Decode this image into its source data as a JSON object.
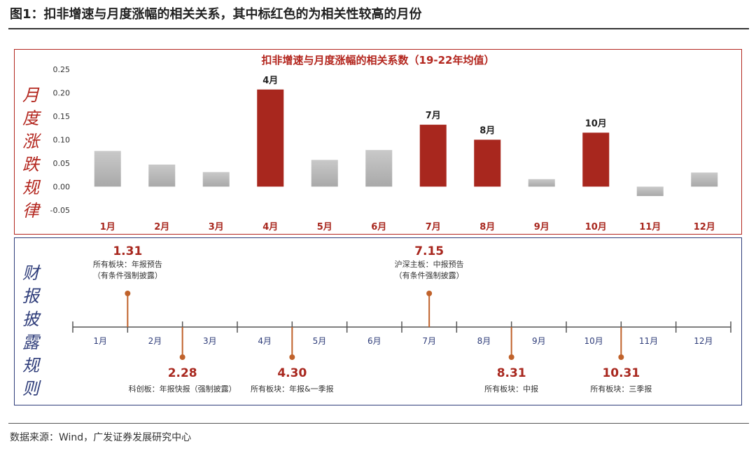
{
  "figure_title": "图1：扣非增速与月度涨幅的相关关系，其中标红色的为相关性较高的月份",
  "source": "数据来源：Wind，广发证券发展研究中心",
  "top_panel": {
    "side_label": [
      "月",
      "度",
      "涨",
      "跌",
      "规",
      "律"
    ],
    "colors": {
      "highlight": "#a8271e",
      "normal": "#bfbfbf",
      "frame": "#b3261e"
    }
  },
  "bottom_panel": {
    "side_label": [
      "财",
      "报",
      "披",
      "露",
      "规",
      "则"
    ],
    "months": [
      "1月",
      "2月",
      "3月",
      "4月",
      "5月",
      "6月",
      "7月",
      "8月",
      "9月",
      "10月",
      "11月",
      "12月"
    ],
    "events": [
      {
        "date": "1.31",
        "desc": [
          "所有板块：年报预告",
          "（有条件强制披露）"
        ],
        "month_pos": 1.0,
        "side": "up"
      },
      {
        "date": "2.28",
        "desc": [
          "科创板：年报快报（强制披露）"
        ],
        "month_pos": 2.0,
        "side": "down"
      },
      {
        "date": "4.30",
        "desc": [
          "所有板块：年报&一季报"
        ],
        "month_pos": 4.0,
        "side": "down"
      },
      {
        "date": "7.15",
        "desc": [
          "沪深主板：中报预告",
          "（有条件强制披露）"
        ],
        "month_pos": 6.5,
        "side": "up"
      },
      {
        "date": "8.31",
        "desc": [
          "所有板块：中报"
        ],
        "month_pos": 8.0,
        "side": "down"
      },
      {
        "date": "10.31",
        "desc": [
          "所有板块：三季报"
        ],
        "month_pos": 10.0,
        "side": "down"
      }
    ],
    "colors": {
      "date": "#a8271e",
      "stem": "#c0622b",
      "axis": "#555555",
      "frame": "#2f3d7a"
    }
  },
  "chart_data": {
    "type": "bar",
    "title": "扣非增速与月度涨幅的相关系数（19-22年均值）",
    "categories": [
      "1月",
      "2月",
      "3月",
      "4月",
      "5月",
      "6月",
      "7月",
      "8月",
      "9月",
      "10月",
      "11月",
      "12月"
    ],
    "values": [
      0.076,
      0.047,
      0.031,
      0.207,
      0.057,
      0.078,
      0.132,
      0.1,
      0.016,
      0.115,
      -0.02,
      0.03
    ],
    "highlighted": [
      false,
      false,
      false,
      true,
      false,
      false,
      true,
      true,
      false,
      true,
      false,
      false
    ],
    "data_labels": [
      "",
      "",
      "",
      "4月",
      "",
      "",
      "7月",
      "8月",
      "",
      "10月",
      "",
      ""
    ],
    "yticks": [
      "0.25",
      "0.20",
      "0.15",
      "0.10",
      "0.05",
      "0.00",
      "-0.05"
    ],
    "ylim": [
      -0.05,
      0.25
    ],
    "xlabel": "",
    "ylabel": "",
    "grid": false,
    "legend": "none"
  }
}
